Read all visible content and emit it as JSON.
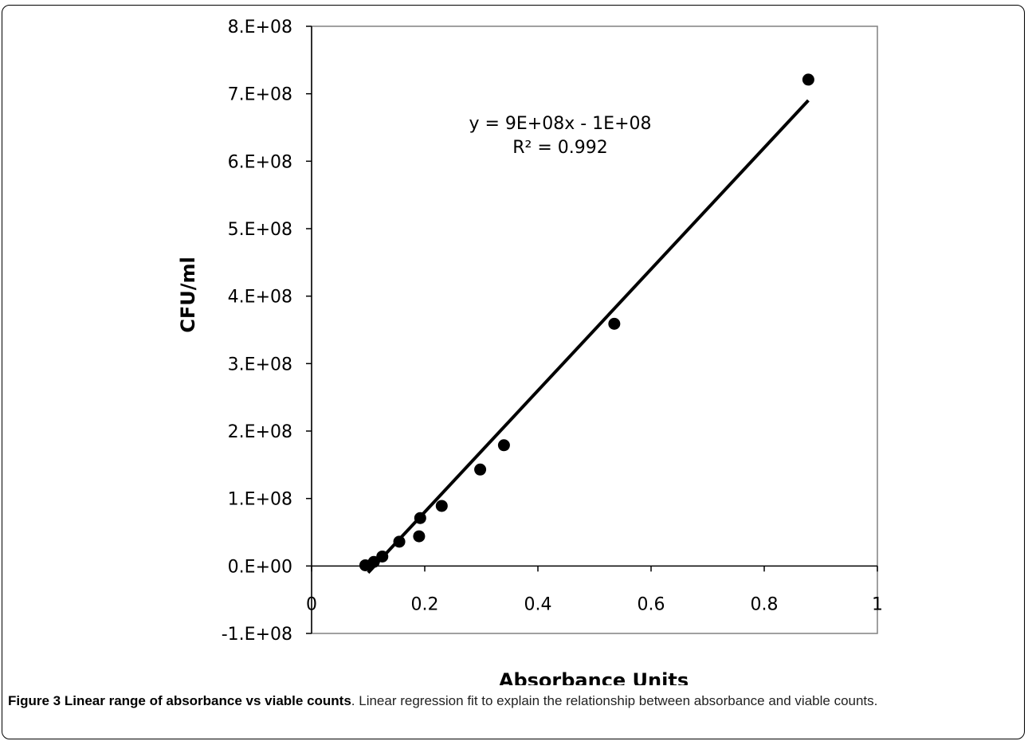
{
  "chart_data": {
    "type": "scatter",
    "xlabel": "Absorbance Units",
    "ylabel": "CFU/ml",
    "xlim": [
      0,
      1
    ],
    "ylim": [
      -100000000,
      800000000
    ],
    "x_ticks": [
      0,
      0.2,
      0.4,
      0.6,
      0.8,
      1
    ],
    "x_tick_labels": [
      "0",
      "0.2",
      "0.4",
      "0.6",
      "0.8",
      "1"
    ],
    "y_ticks": [
      -100000000,
      0,
      100000000,
      200000000,
      300000000,
      400000000,
      500000000,
      600000000,
      700000000,
      800000000
    ],
    "y_tick_labels": [
      "-1.E+08",
      "0.E+00",
      "1.E+08",
      "2.E+08",
      "3.E+08",
      "4.E+08",
      "5.E+08",
      "6.E+08",
      "7.E+08",
      "8.E+08"
    ],
    "grid": false,
    "series": [
      {
        "x": [
          0.095,
          0.11,
          0.125,
          0.155,
          0.19,
          0.192,
          0.23,
          0.298,
          0.34,
          0.535,
          0.878
        ],
        "y": [
          1000000,
          6000000,
          14000000,
          36000000,
          44000000,
          71000000,
          89000000,
          143000000,
          179000000,
          359000000,
          721000000
        ]
      }
    ],
    "trendline": {
      "slope": 900000000,
      "intercept": -100000000,
      "x_range": [
        0.1,
        0.878
      ],
      "equation_text": "y = 9E+08x - 1E+08",
      "r2_text": "R² = 0.992"
    }
  },
  "caption": {
    "label": "Figure 3 Linear range of absorbance vs viable counts",
    "text": ". Linear regression fit to explain the relationship between absorbance and viable counts."
  }
}
